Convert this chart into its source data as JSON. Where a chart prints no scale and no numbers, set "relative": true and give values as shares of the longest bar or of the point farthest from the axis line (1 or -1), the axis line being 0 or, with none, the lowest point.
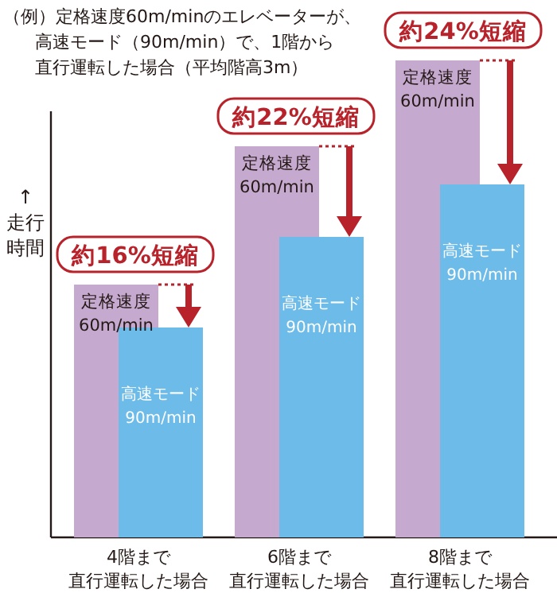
{
  "chart_data": {
    "type": "bar",
    "title": "（例）定格速度60m/minのエレベーターが、高速モード（90m/min）で、1階から直行運転した場合（平均階高3m）",
    "ylabel": "↑走行時間",
    "categories": [
      "4階まで直行運転した場合",
      "6階まで直行運転した場合",
      "8階まで直行運転した場合"
    ],
    "series": [
      {
        "name": "定格速度60m/min",
        "color": "#c5a9cf",
        "values": [
          0.53,
          0.82,
          1.0
        ]
      },
      {
        "name": "高速モード90m/min",
        "color": "#6dbbe8",
        "values": [
          0.44,
          0.63,
          0.74
        ]
      }
    ],
    "annotations": [
      "約16%短縮",
      "約22%短縮",
      "約24%短縮"
    ],
    "relative": true
  }
}
